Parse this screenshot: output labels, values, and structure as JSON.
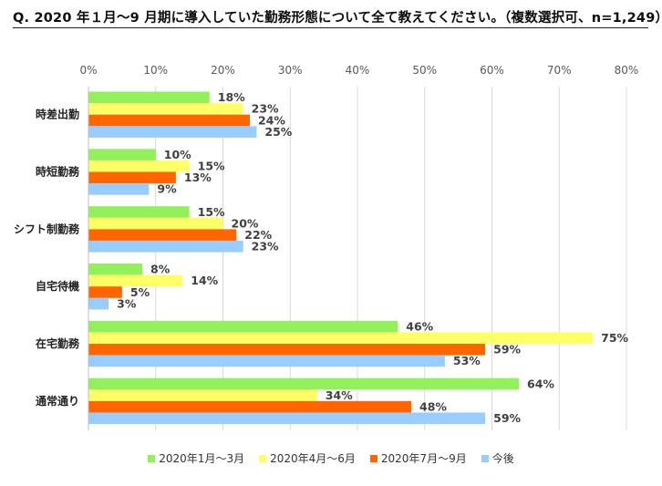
{
  "chart_data": {
    "type": "bar",
    "orientation": "horizontal",
    "title": "Q. 2020 年１月～9 月期に導入していた勤務形態について全て教えてください。（複数選択可、n=1,249）",
    "xlabel": "",
    "ylabel": "",
    "xlim": [
      0,
      80
    ],
    "x_ticks": [
      "0%",
      "10%",
      "20%",
      "30%",
      "40%",
      "50%",
      "60%",
      "70%",
      "80%"
    ],
    "grid": "vertical",
    "legend_position": "bottom",
    "categories": [
      "時差出勤",
      "時短勤務",
      "シフト制勤務",
      "自宅待機",
      "在宅勤務",
      "通常通り"
    ],
    "series": [
      {
        "name": "2020年1月～3月",
        "color": "#92f05a",
        "values": [
          18,
          10,
          15,
          8,
          46,
          64
        ]
      },
      {
        "name": "2020年4月～6月",
        "color": "#ffff66",
        "values": [
          23,
          15,
          20,
          14,
          75,
          34
        ]
      },
      {
        "name": "2020年7月～9月",
        "color": "#ff6600",
        "values": [
          24,
          13,
          22,
          5,
          59,
          48
        ]
      },
      {
        "name": "今後",
        "color": "#99ccff",
        "values": [
          25,
          9,
          23,
          3,
          53,
          59
        ]
      }
    ]
  }
}
